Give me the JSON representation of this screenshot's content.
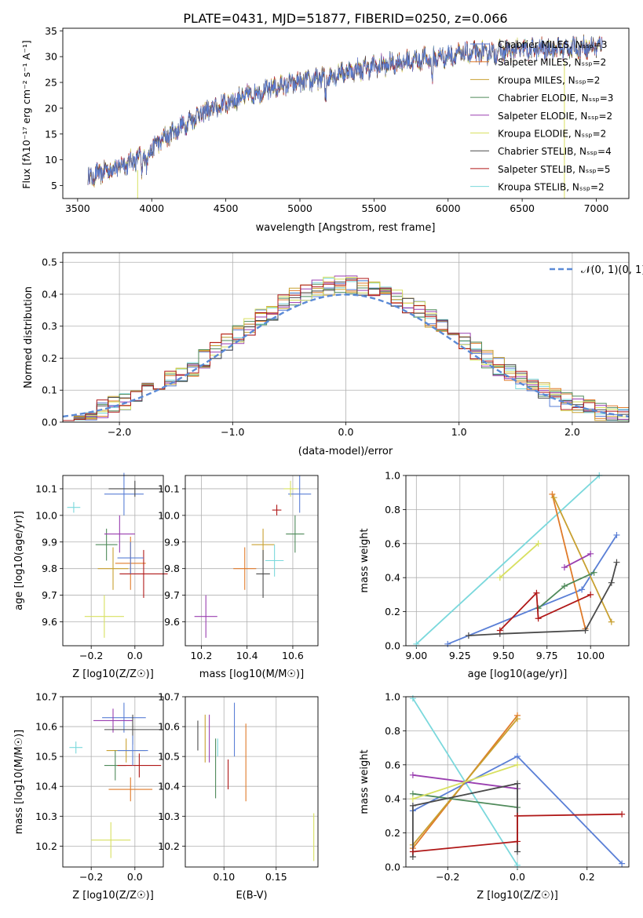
{
  "chart_data": [
    {
      "type": "line",
      "title": "PLATE=0431, MJD=51877, FIBERID=0250, z=0.066",
      "xlabel": "wavelength [Angstrom, rest frame]",
      "ylabel": "Flux [fλ10⁻¹⁷ erg cm⁻² s⁻¹ A⁻¹]",
      "xlim": [
        3400,
        7220
      ],
      "ylim": [
        2.5,
        35.5
      ],
      "xticks": [
        3500,
        4000,
        4500,
        5000,
        5500,
        6000,
        6500,
        7000
      ],
      "yticks": [
        5,
        10,
        15,
        20,
        25,
        30,
        35
      ],
      "legend_position": "top-right",
      "series": [
        {
          "name": "Chabrier MILES, N_SSP=3",
          "color": "#5a7fd6"
        },
        {
          "name": "Salpeter MILES, N_SSP=2",
          "color": "#e07b2a"
        },
        {
          "name": "Kroupa MILES, N_SSP=2",
          "color": "#c8a030"
        },
        {
          "name": "Chabrier ELODIE, N_SSP=3",
          "color": "#4f8a5a"
        },
        {
          "name": "Salpeter ELODIE, N_SSP=2",
          "color": "#9a3fb0"
        },
        {
          "name": "Kroupa ELODIE, N_SSP=2",
          "color": "#d8e060"
        },
        {
          "name": "Chabrier STELIB, N_SSP=4",
          "color": "#4a4a4a"
        },
        {
          "name": "Salpeter STELIB, N_SSP=5",
          "color": "#b01818"
        },
        {
          "name": "Kroupa STELIB, N_SSP=2",
          "color": "#7ad8dc"
        }
      ],
      "continuum": {
        "x": [
          3570,
          3700,
          3850,
          3950,
          4050,
          4150,
          4300,
          4500,
          4700,
          4900,
          5100,
          5300,
          5500,
          5700,
          5900,
          6100,
          6300,
          6500,
          6700,
          6900,
          7040
        ],
        "y": [
          6.5,
          8,
          9.5,
          11,
          13.5,
          15.5,
          18.5,
          21,
          23,
          24.5,
          25.5,
          27,
          28,
          29,
          29.8,
          30.5,
          30.8,
          31.3,
          31.5,
          31.8,
          32
        ]
      }
    },
    {
      "type": "line",
      "xlabel": "(data-model)/error",
      "ylabel": "Normed distribution",
      "xlim": [
        -2.5,
        2.5
      ],
      "ylim": [
        0,
        0.53
      ],
      "xticks": [
        -2,
        -1,
        0,
        1,
        2
      ],
      "yticks": [
        0.0,
        0.1,
        0.2,
        0.3,
        0.4,
        0.5
      ],
      "legend": "𝒩(0, 1)",
      "gaussian": {
        "mu": 0,
        "sigma": 1
      },
      "histogram_bin_width": 0.1
    },
    {
      "type": "scatter",
      "xlabel": "Z [log10(Z/Z☉)]",
      "ylabel": "age  [log10(age/yr)]",
      "xlim": [
        -0.33,
        0.13
      ],
      "ylim": [
        9.51,
        10.15
      ],
      "xticks": [
        -0.2,
        0.0
      ],
      "yticks": [
        9.6,
        9.7,
        9.8,
        9.9,
        10.0,
        10.1
      ],
      "points": [
        {
          "x": -0.05,
          "y": 10.08,
          "xerr": 0.09,
          "yerr": 0.08
        },
        {
          "x": -0.02,
          "y": 9.82,
          "xerr": 0.07,
          "yerr": 0.1
        },
        {
          "x": -0.1,
          "y": 9.8,
          "xerr": 0.07,
          "yerr": 0.08
        },
        {
          "x": -0.13,
          "y": 9.89,
          "xerr": 0.05,
          "yerr": 0.06
        },
        {
          "x": -0.07,
          "y": 9.93,
          "xerr": 0.07,
          "yerr": 0.07
        },
        {
          "x": -0.14,
          "y": 9.62,
          "xerr": 0.09,
          "yerr": 0.08
        },
        {
          "x": 0.0,
          "y": 10.1,
          "xerr": 0.12,
          "yerr": 0.03
        },
        {
          "x": 0.04,
          "y": 9.78,
          "xerr": 0.11,
          "yerr": 0.09
        },
        {
          "x": -0.28,
          "y": 10.03,
          "xerr": 0.03,
          "yerr": 0.02
        },
        {
          "x": -0.02,
          "y": 9.84,
          "xerr": 0.06,
          "yerr": 0.06
        }
      ]
    },
    {
      "type": "scatter",
      "xlabel": "mass [log10(M/M☉)]",
      "xlim": [
        10.13,
        10.71
      ],
      "ylim": [
        9.51,
        10.15
      ],
      "xticks": [
        10.2,
        10.4,
        10.6
      ],
      "yticks": [
        9.6,
        9.7,
        9.8,
        9.9,
        10.0,
        10.1
      ],
      "points": [
        {
          "x": 10.63,
          "y": 10.08,
          "xerr": 0.05,
          "yerr": 0.07
        },
        {
          "x": 10.39,
          "y": 9.8,
          "xerr": 0.05,
          "yerr": 0.08
        },
        {
          "x": 10.47,
          "y": 9.89,
          "xerr": 0.05,
          "yerr": 0.06
        },
        {
          "x": 10.61,
          "y": 9.93,
          "xerr": 0.04,
          "yerr": 0.07
        },
        {
          "x": 10.22,
          "y": 9.62,
          "xerr": 0.05,
          "yerr": 0.08
        },
        {
          "x": 10.59,
          "y": 10.1,
          "xerr": 0.03,
          "yerr": 0.03
        },
        {
          "x": 10.47,
          "y": 9.78,
          "xerr": 0.03,
          "yerr": 0.09
        },
        {
          "x": 10.53,
          "y": 10.02,
          "xerr": 0.02,
          "yerr": 0.02
        },
        {
          "x": 10.52,
          "y": 9.83,
          "xerr": 0.04,
          "yerr": 0.06
        }
      ]
    },
    {
      "type": "line",
      "xlabel": "age  [log10(age/yr)]",
      "ylabel": "mass weight",
      "xlim": [
        8.94,
        10.22
      ],
      "ylim": [
        0,
        1
      ],
      "xticks": [
        9.0,
        9.25,
        9.5,
        9.75,
        10.0
      ],
      "yticks": [
        0.0,
        0.2,
        0.4,
        0.6,
        0.8,
        1.0
      ]
    },
    {
      "type": "scatter",
      "xlabel": "Z [log10(Z/Z☉)]",
      "ylabel": "mass [log10(M/M☉)]",
      "xlim": [
        -0.33,
        0.13
      ],
      "ylim": [
        10.13,
        10.7
      ],
      "xticks": [
        -0.2,
        0.0
      ],
      "yticks": [
        10.2,
        10.3,
        10.4,
        10.5,
        10.6,
        10.7
      ]
    },
    {
      "type": "scatter",
      "xlabel": "E(B-V)",
      "xlim": [
        0.063,
        0.19
      ],
      "ylim": [
        10.13,
        10.7
      ],
      "xticks": [
        0.1,
        0.15
      ],
      "yticks": [
        10.2,
        10.3,
        10.4,
        10.5,
        10.6,
        10.7
      ]
    },
    {
      "type": "line",
      "xlabel": "Z [log10(Z/Z☉)]",
      "ylabel": "mass weight",
      "xlim": [
        -0.32,
        0.32
      ],
      "ylim": [
        0,
        1
      ],
      "xticks": [
        -0.2,
        0.0,
        0.2
      ],
      "yticks": [
        0.0,
        0.2,
        0.4,
        0.6,
        0.8,
        1.0
      ]
    }
  ]
}
